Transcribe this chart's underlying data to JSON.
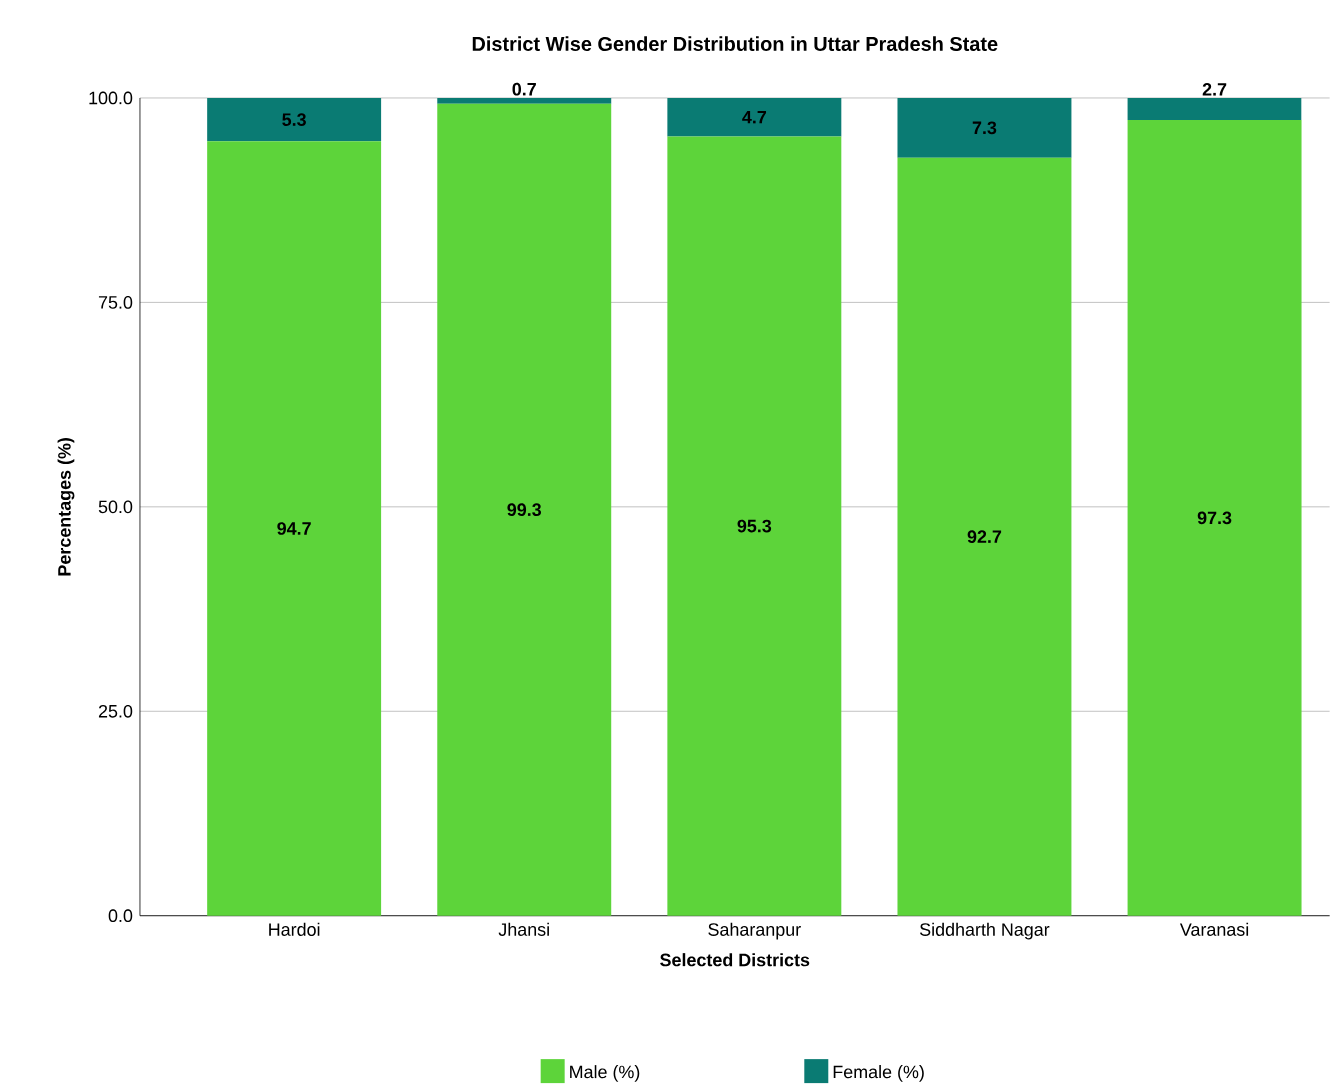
{
  "chart_data": {
    "type": "bar",
    "stacked": true,
    "title": "District Wise Gender Distribution in Uttar Pradesh State",
    "xlabel": "Selected Districts",
    "ylabel": "Percentages (%)",
    "categories": [
      "Hardoi",
      "Jhansi",
      "Saharanpur",
      "Siddharth Nagar",
      "Varanasi"
    ],
    "series": [
      {
        "name": "Male (%)",
        "color": "#5dd43a",
        "values": [
          94.7,
          99.3,
          95.3,
          92.7,
          97.3
        ],
        "value_labels": [
          "94.7",
          "99.3",
          "95.3",
          "92.7",
          "97.3"
        ]
      },
      {
        "name": "Female (%)",
        "color": "#0a7b73",
        "values": [
          5.3,
          0.7,
          4.7,
          7.3,
          2.7
        ],
        "value_labels": [
          "5.3",
          "0.7",
          "4.7",
          "7.3",
          "2.7"
        ]
      }
    ],
    "ylim": [
      0,
      100
    ],
    "yticks": [
      {
        "value": 0,
        "label": "0.0"
      },
      {
        "value": 25,
        "label": "25.0"
      },
      {
        "value": 50,
        "label": "50.0"
      },
      {
        "value": 75,
        "label": "75.0"
      },
      {
        "value": 100,
        "label": "100.0"
      }
    ],
    "grid": "y",
    "legend": "bottom"
  }
}
